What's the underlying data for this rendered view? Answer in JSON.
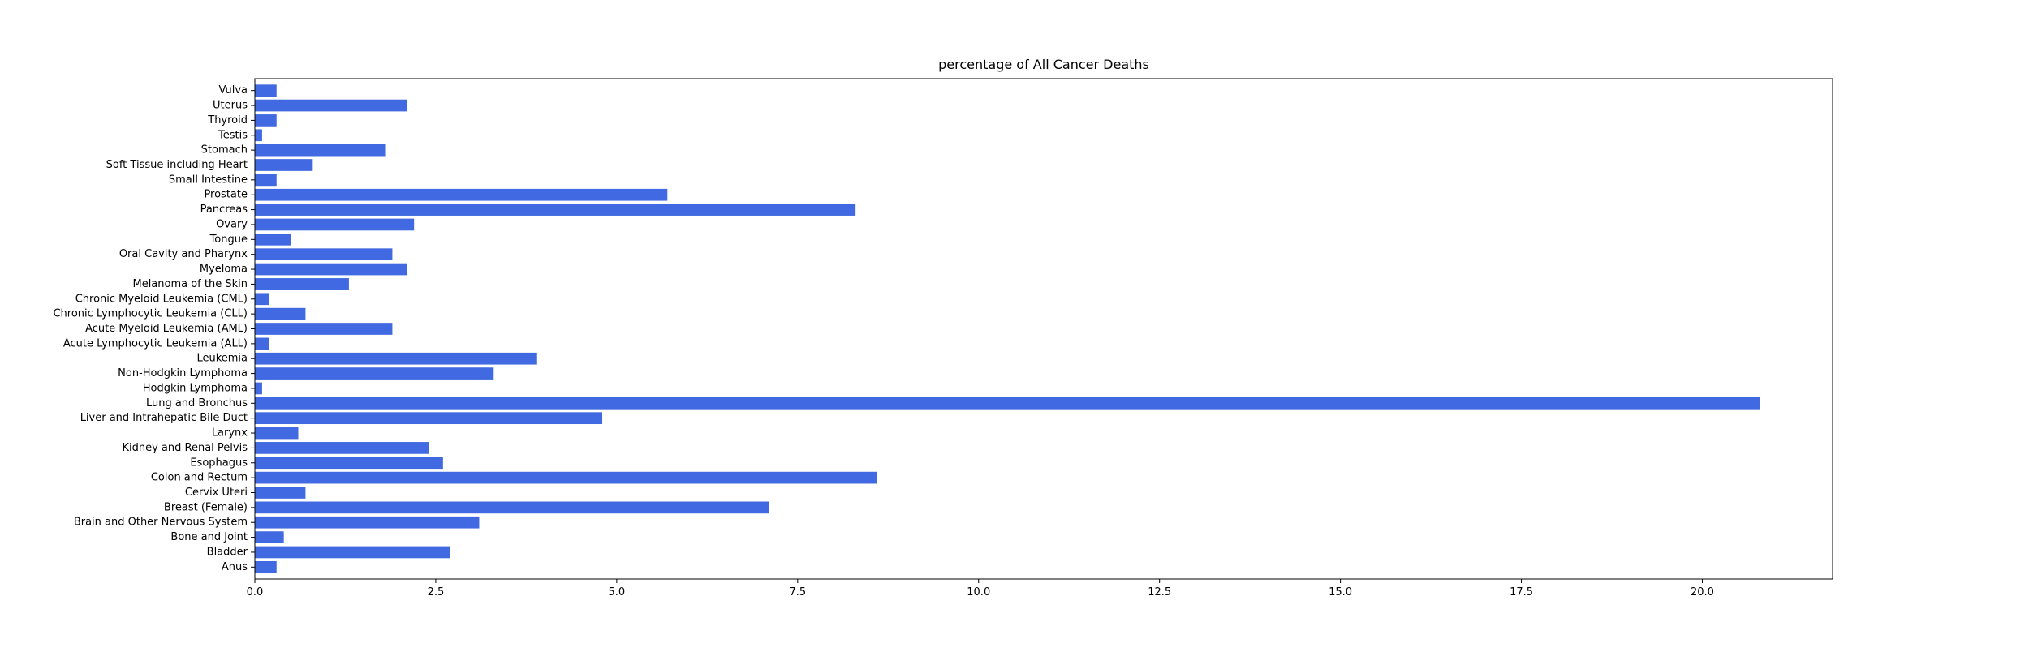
{
  "chart_data": {
    "type": "bar",
    "orientation": "horizontal",
    "title": "percentage of All Cancer Deaths",
    "xlabel": "",
    "ylabel": "",
    "xlim": [
      0,
      21.8
    ],
    "xticks": [
      0,
      2.5,
      5,
      7.5,
      10,
      12.5,
      15,
      17.5,
      20
    ],
    "xtick_labels": [
      "0.0",
      "2.5",
      "5.0",
      "7.5",
      "10.0",
      "12.5",
      "15.0",
      "17.5",
      "20.0"
    ],
    "grid": false,
    "bar_color": "#4169e1",
    "categories": [
      "Anus",
      "Bladder",
      "Bone and Joint",
      "Brain and Other Nervous System",
      "Breast (Female)",
      "Cervix Uteri",
      "Colon and Rectum",
      "Esophagus",
      "Kidney and Renal Pelvis",
      "Larynx",
      "Liver and Intrahepatic Bile Duct",
      "Lung and Bronchus",
      "Hodgkin Lymphoma",
      "Non-Hodgkin Lymphoma",
      "Leukemia",
      "Acute Lymphocytic Leukemia (ALL)",
      "Acute Myeloid Leukemia (AML)",
      "Chronic Lymphocytic Leukemia (CLL)",
      "Chronic Myeloid Leukemia (CML)",
      "Melanoma of the Skin",
      "Myeloma",
      "Oral Cavity and Pharynx",
      "Tongue",
      "Ovary",
      "Pancreas",
      "Prostate",
      "Small Intestine",
      "Soft Tissue including Heart",
      "Stomach",
      "Testis",
      "Thyroid",
      "Uterus",
      "Vulva"
    ],
    "values": [
      0.3,
      2.7,
      0.4,
      3.1,
      7.1,
      0.7,
      8.6,
      2.6,
      2.4,
      0.6,
      4.8,
      20.8,
      0.1,
      3.3,
      3.9,
      0.2,
      1.9,
      0.7,
      0.2,
      1.3,
      2.1,
      1.9,
      0.5,
      2.2,
      8.3,
      5.7,
      0.3,
      0.8,
      1.8,
      0.1,
      0.3,
      2.1,
      0.3
    ]
  }
}
